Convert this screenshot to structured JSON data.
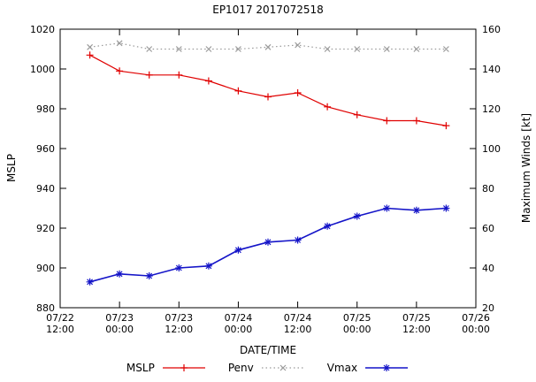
{
  "chart_data": {
    "type": "line",
    "title": "EP1017 2017072518",
    "xlabel": "DATE/TIME",
    "ylabel": "MSLP",
    "y2label": "Maximum Winds [kt]",
    "ylim": [
      880,
      1020
    ],
    "y_tick_step": 20,
    "y2lim": [
      20,
      160
    ],
    "y2_tick_step": 20,
    "grid": "off",
    "legend_position": "bottom-center",
    "x_ticks": [
      {
        "date": "07/22",
        "time": "12:00",
        "hour": 0
      },
      {
        "date": "07/23",
        "time": "00:00",
        "hour": 12
      },
      {
        "date": "07/23",
        "time": "12:00",
        "hour": 24
      },
      {
        "date": "07/24",
        "time": "00:00",
        "hour": 36
      },
      {
        "date": "07/24",
        "time": "12:00",
        "hour": 48
      },
      {
        "date": "07/25",
        "time": "00:00",
        "hour": 60
      },
      {
        "date": "07/25",
        "time": "12:00",
        "hour": 72
      },
      {
        "date": "07/26",
        "time": "00:00",
        "hour": 84
      }
    ],
    "x_hours": [
      6,
      12,
      18,
      24,
      30,
      36,
      42,
      48,
      54,
      60,
      66,
      72,
      78
    ],
    "series": [
      {
        "name": "MSLP",
        "axis": "left",
        "color": "#e00000",
        "marker": "plus",
        "line": "solid",
        "values": [
          1007,
          999,
          997,
          997,
          994,
          989,
          986,
          988,
          981,
          977,
          974,
          974,
          971.5
        ]
      },
      {
        "name": "Penv",
        "axis": "left",
        "color": "#9a9a9a",
        "marker": "cross",
        "line": "dotted",
        "values": [
          1011,
          1013,
          1010,
          1010,
          1010,
          1010,
          1011,
          1012,
          1010,
          1010,
          1010,
          1010,
          1010
        ]
      },
      {
        "name": "Vmax",
        "axis": "right",
        "color": "#1414c8",
        "marker": "asterisk",
        "line": "solid",
        "values": [
          33,
          37,
          36,
          40,
          41,
          49,
          53,
          54,
          61,
          66,
          70,
          69,
          70
        ]
      }
    ]
  }
}
